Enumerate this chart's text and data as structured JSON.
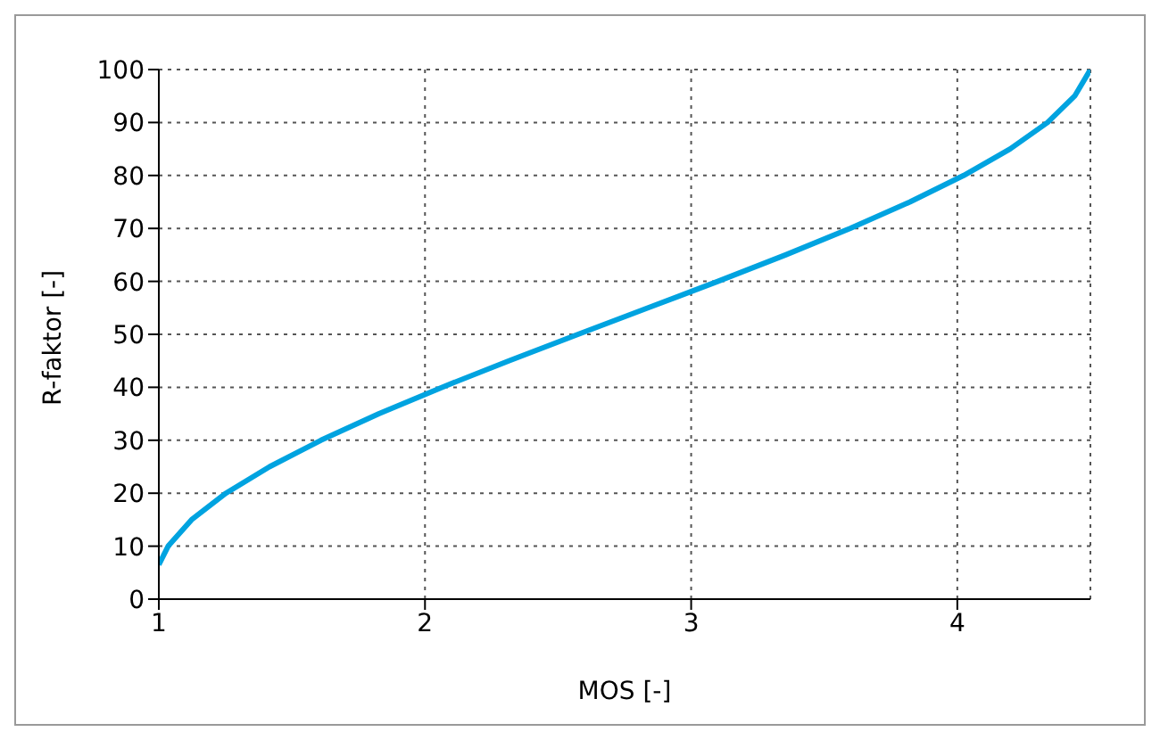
{
  "chart_data": {
    "type": "line",
    "xlabel": "MOS [-]",
    "ylabel": "R-faktor [-]",
    "x": [
      1.0,
      1.035,
      1.123,
      1.252,
      1.416,
      1.609,
      1.827,
      2.064,
      2.315,
      2.575,
      2.838,
      3.1,
      3.355,
      3.597,
      3.822,
      4.024,
      4.198,
      4.339,
      4.441,
      4.5
    ],
    "series": [
      {
        "color": "#00a3e0",
        "values": [
          6.5,
          10,
          15,
          20,
          25,
          30,
          35,
          40,
          45,
          50,
          55,
          60,
          65,
          70,
          75,
          80,
          85,
          90,
          95,
          100
        ]
      }
    ],
    "xlim": [
      1,
      4.5
    ],
    "xticks": [
      1,
      2,
      3,
      4
    ],
    "ylim": [
      0,
      100
    ],
    "yticks": [
      0,
      10,
      20,
      30,
      40,
      50,
      60,
      70,
      80,
      90,
      100
    ],
    "grid": true,
    "legend": false,
    "marker": "none",
    "line_style": "solid"
  }
}
